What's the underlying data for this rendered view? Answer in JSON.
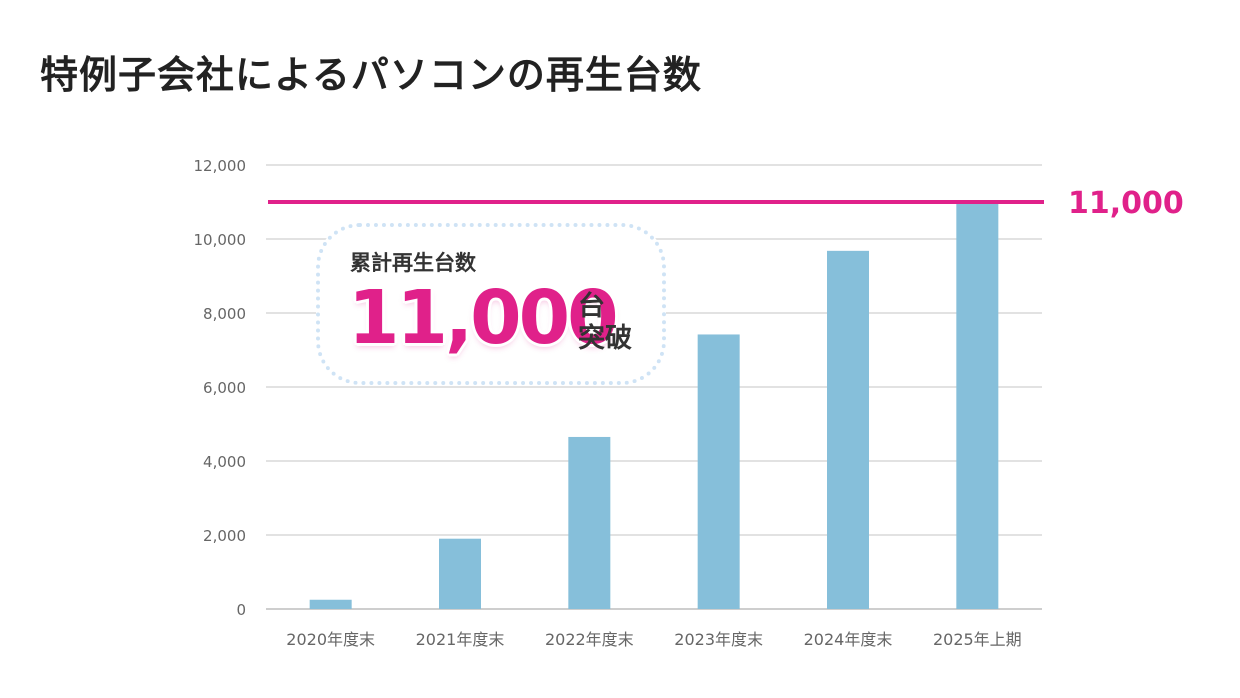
{
  "title": "特例子会社によるパソコンの再生台数",
  "chart_data": {
    "type": "bar",
    "categories": [
      "2020年度末",
      "2021年度末",
      "2022年度末",
      "2023年度末",
      "2024年度末",
      "2025年上期"
    ],
    "values": [
      250,
      1900,
      4650,
      7420,
      9680,
      10950
    ],
    "ylim": [
      0,
      12000
    ],
    "yticks": [
      "0",
      "2,000",
      "4,000",
      "6,000",
      "8,000",
      "10,000",
      "12,000"
    ],
    "ytick_values": [
      0,
      2000,
      4000,
      6000,
      8000,
      10000,
      12000
    ],
    "grid": true,
    "bar_color": "#86bfda",
    "reference_line": {
      "value": 11000,
      "label": "11,000",
      "color": "#e0218a"
    },
    "annotation": {
      "label": "累計再生台数",
      "number": "11,000",
      "unit_line1": "台",
      "unit_line2": "突破"
    }
  }
}
